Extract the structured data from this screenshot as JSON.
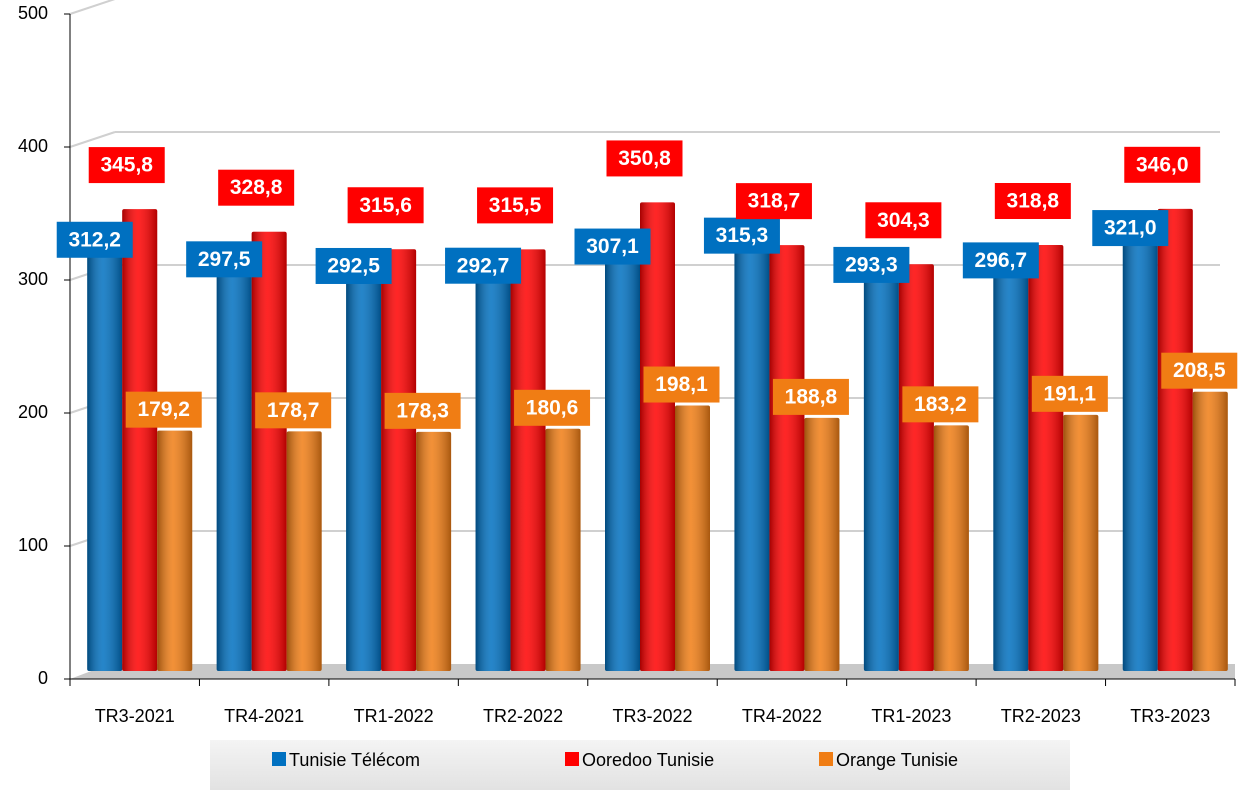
{
  "chart_data": {
    "type": "bar",
    "categories": [
      "TR3-2021",
      "TR4-2021",
      "TR1-2022",
      "TR2-2022",
      "TR3-2022",
      "TR4-2022",
      "TR1-2023",
      "TR2-2023",
      "TR3-2023"
    ],
    "series": [
      {
        "name": "Tunisie Télécom",
        "color": "#0070c0",
        "values": [
          312.2,
          297.5,
          292.5,
          292.7,
          307.1,
          315.3,
          293.3,
          296.7,
          321.0
        ],
        "value_labels": [
          "312,2",
          "297,5",
          "292,5",
          "292,7",
          "307,1",
          "315,3",
          "293,3",
          "296,7",
          "321,0"
        ]
      },
      {
        "name": "Ooredoo Tunisie",
        "color": "#ff0000",
        "values": [
          345.8,
          328.8,
          315.6,
          315.5,
          350.8,
          318.7,
          304.3,
          318.8,
          346.0
        ],
        "value_labels": [
          "345,8",
          "328,8",
          "315,6",
          "315,5",
          "350,8",
          "318,7",
          "304,3",
          "318,8",
          "346,0"
        ]
      },
      {
        "name": "Orange Tunisie",
        "color": "#f07d14",
        "values": [
          179.2,
          178.7,
          178.3,
          180.6,
          198.1,
          188.8,
          183.2,
          191.1,
          208.5
        ],
        "value_labels": [
          "179,2",
          "178,7",
          "178,3",
          "180,6",
          "198,1",
          "188,8",
          "183,2",
          "191,1",
          "208,5"
        ]
      }
    ],
    "ylim": [
      0,
      500
    ],
    "yticks": [
      0,
      100,
      200,
      300,
      400,
      500
    ],
    "grid": true,
    "legend": "bottom"
  }
}
